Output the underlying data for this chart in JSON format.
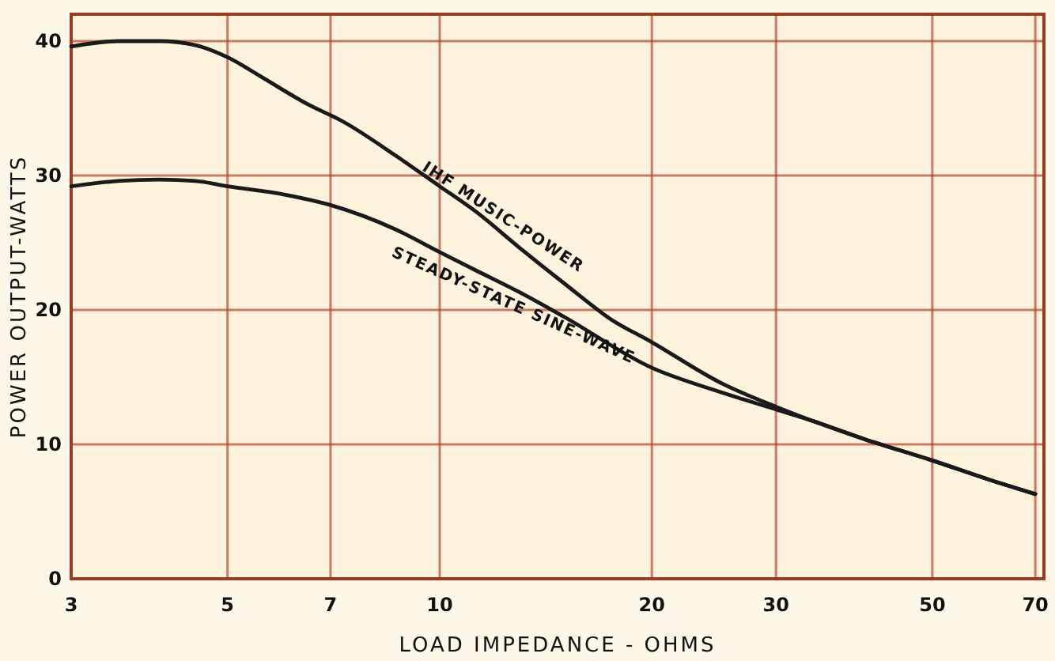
{
  "chart_data": {
    "type": "line",
    "xlabel": "LOAD IMPEDANCE - OHMS",
    "ylabel": "POWER OUTPUT-WATTS",
    "log": "x",
    "xlim": [
      3,
      72
    ],
    "xticks": [
      3,
      5,
      7,
      10,
      20,
      30,
      50,
      70
    ],
    "ylim": [
      0,
      42
    ],
    "yticks": [
      0,
      10,
      20,
      30,
      40
    ],
    "grid": true,
    "marker": "none",
    "line_style": "solid",
    "series": [
      {
        "color": "#1a1a1a",
        "x": [
          3,
          3.5,
          4,
          4.5,
          5,
          5.6,
          6.5,
          7.3,
          8.65,
          10,
          11.2,
          13,
          15,
          17.5,
          20,
          25,
          30,
          34,
          40,
          50,
          60,
          70
        ],
        "values": [
          39.6,
          40,
          40,
          39.7,
          38.8,
          37.3,
          35.3,
          34,
          31.5,
          29.2,
          27.4,
          24.6,
          22,
          19.3,
          17.6,
          14.6,
          12.8,
          11.7,
          10.4,
          8.8,
          7.4,
          6.3
        ]
      },
      {
        "color": "#1a1a1a",
        "x": [
          3,
          3.5,
          4,
          4.5,
          5,
          6,
          7,
          8.65,
          10,
          11.2,
          13,
          15,
          20,
          25,
          30,
          34,
          40,
          50,
          60,
          70
        ],
        "values": [
          29.2,
          29.6,
          29.7,
          29.6,
          29.2,
          28.6,
          27.8,
          26,
          24.3,
          23,
          21.3,
          19.5,
          15.7,
          13.9,
          12.6,
          11.7,
          10.4,
          8.8,
          7.4,
          6.3
        ]
      }
    ],
    "annotations": [
      {
        "text": "IHF MUSIC-POWER",
        "x": 12,
        "y": 26
      },
      {
        "text": "STEADY-STATE SINE-WAVE",
        "x": 13,
        "y": 21.4
      }
    ]
  }
}
